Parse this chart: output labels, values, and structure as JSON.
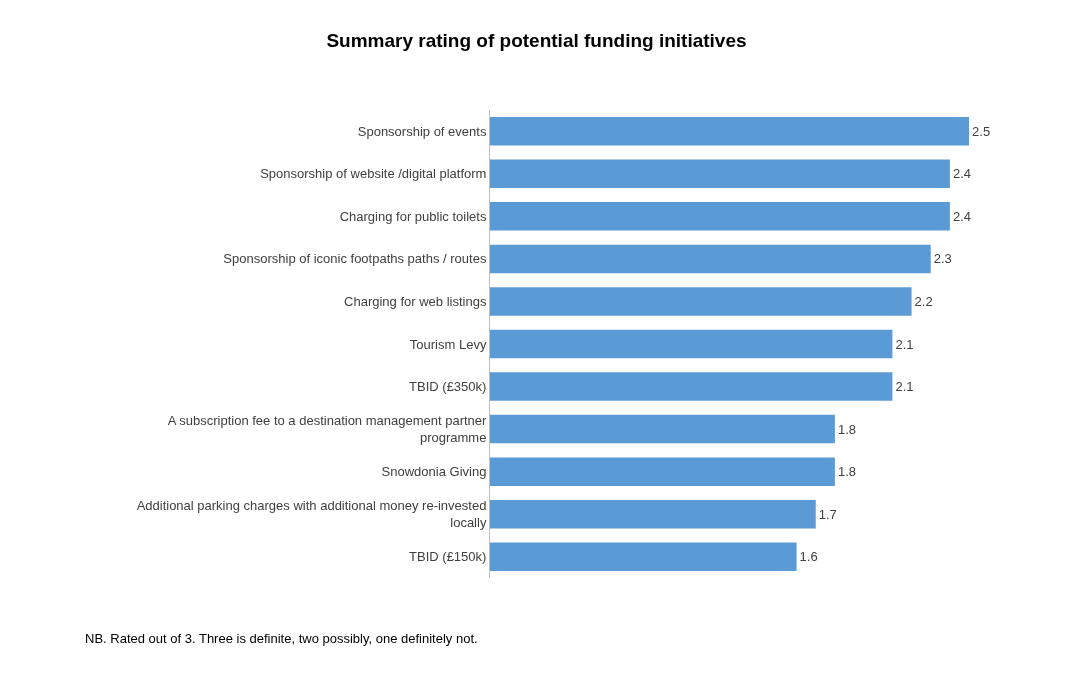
{
  "chart_data": {
    "type": "bar",
    "orientation": "horizontal",
    "title": "Summary rating of potential funding initiatives",
    "categories": [
      "Sponsorship of events",
      "Sponsorship of website /digital platform",
      "Charging for public toilets",
      "Sponsorship of iconic footpaths paths / routes",
      "Charging for web listings",
      "Tourism Levy",
      "TBID (£350k)",
      "A subscription fee to a destination management partner programme",
      "Snowdonia Giving",
      "Additional parking charges with additional money re-invested locally",
      "TBID (£150k)"
    ],
    "values": [
      2.5,
      2.4,
      2.4,
      2.3,
      2.2,
      2.1,
      2.1,
      1.8,
      1.8,
      1.7,
      1.6
    ],
    "color": "#5b9bd5",
    "data_labels": true,
    "annotations": [
      "NB. Rated out of 3. Three is definite, two possibly, one definitely not."
    ]
  }
}
